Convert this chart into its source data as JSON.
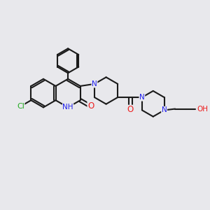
{
  "background_color": "#e8e8ec",
  "bond_color": "#1a1a1a",
  "bond_width": 1.5,
  "atom_colors": {
    "N": "#2020ee",
    "O": "#ee2020",
    "Cl": "#22aa22",
    "C": "#1a1a1a",
    "H": "#1a1a1a"
  },
  "font_size_atom": 7.5
}
